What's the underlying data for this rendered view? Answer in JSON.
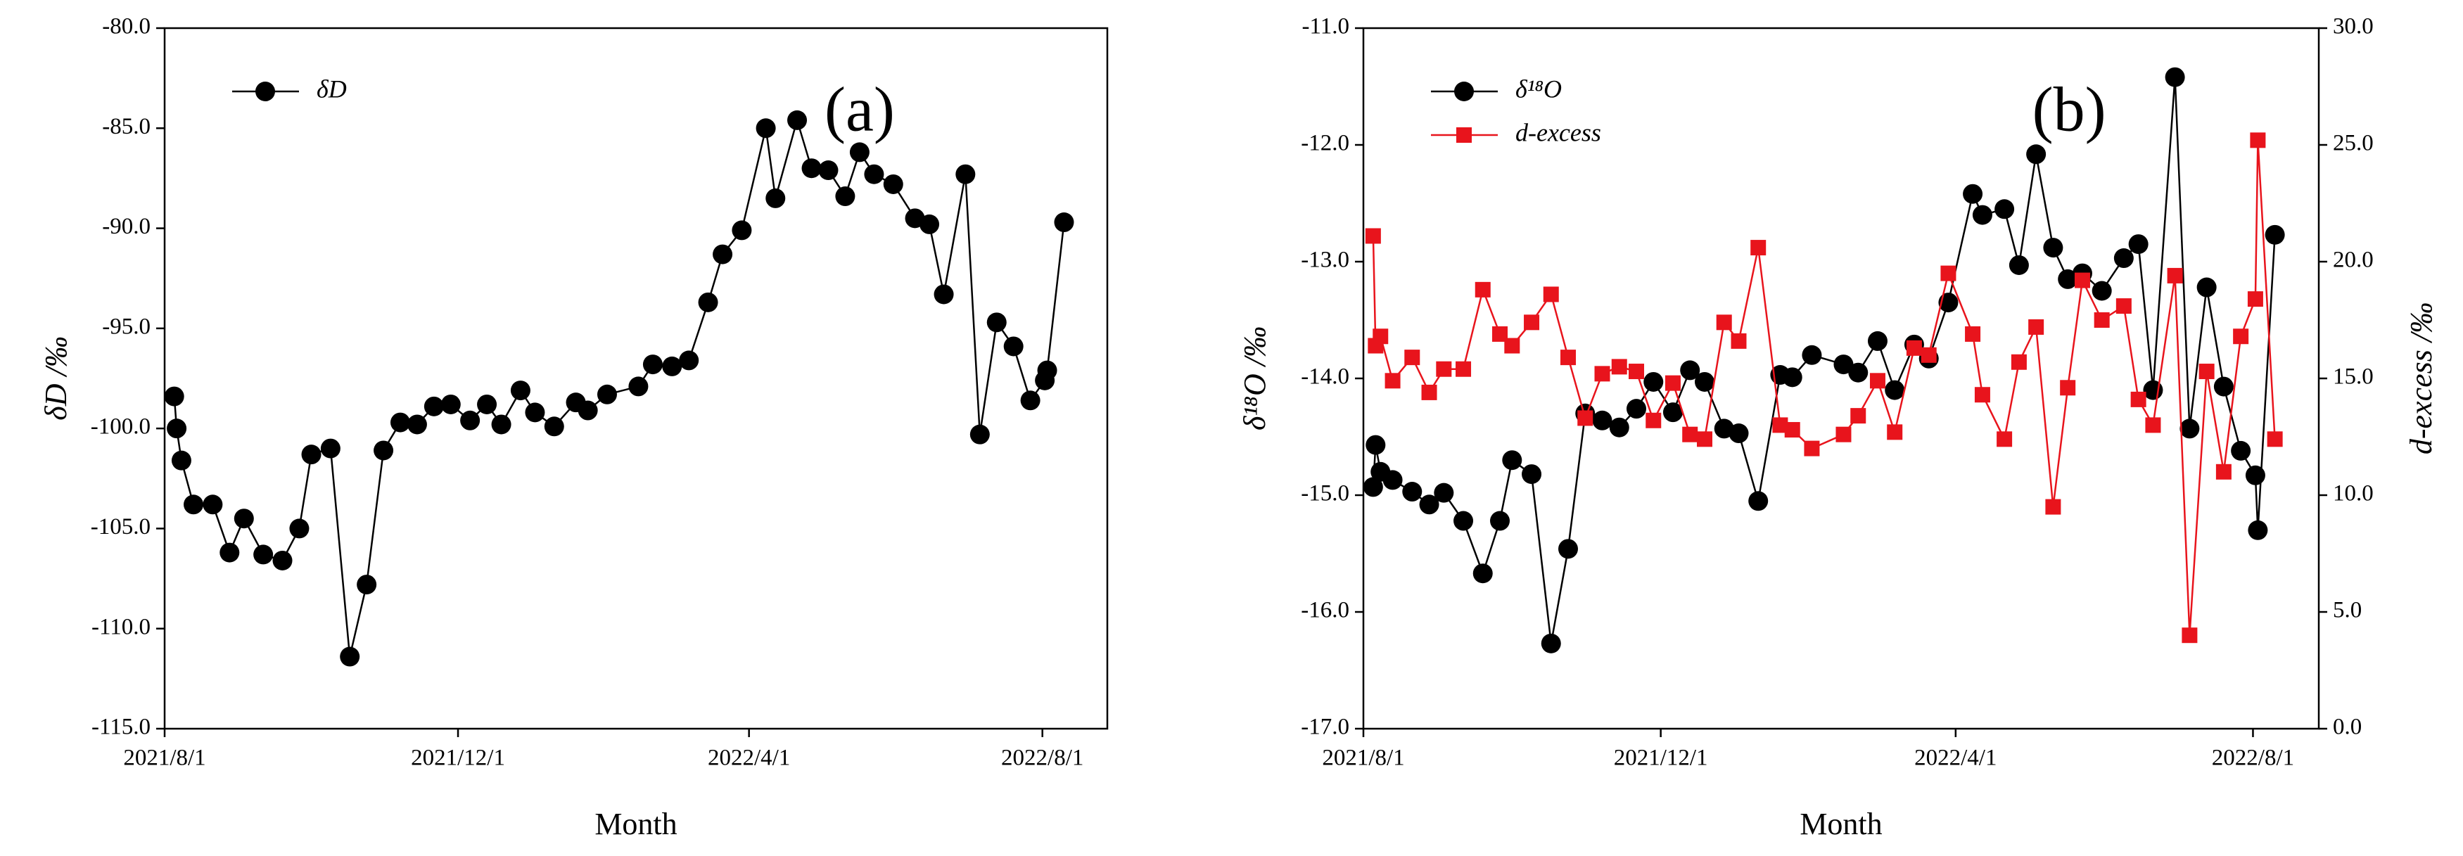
{
  "chart_data": [
    {
      "type": "line",
      "annotation": "(a)",
      "x_label": "Month",
      "y_label": "δD /‰",
      "legend": "upper left",
      "x": [
        "2021/8/5",
        "2021/8/6",
        "2021/8/8",
        "2021/8/13",
        "2021/8/21",
        "2021/8/28",
        "2021/9/3",
        "2021/9/11",
        "2021/9/19",
        "2021/9/26",
        "2021/10/1",
        "2021/10/9",
        "2021/10/17",
        "2021/10/24",
        "2021/10/31",
        "2021/11/7",
        "2021/11/14",
        "2021/11/21",
        "2021/11/28",
        "2021/12/6",
        "2021/12/13",
        "2021/12/19",
        "2021/12/27",
        "2022/1/2",
        "2022/1/10",
        "2022/1/19",
        "2022/1/24",
        "2022/2/1",
        "2022/2/14",
        "2022/2/20",
        "2022/2/28",
        "2022/3/7",
        "2022/3/15",
        "2022/3/21",
        "2022/3/29",
        "2022/4/8",
        "2022/4/12",
        "2022/4/21",
        "2022/4/27",
        "2022/5/4",
        "2022/5/11",
        "2022/5/17",
        "2022/5/23",
        "2022/5/31",
        "2022/6/9",
        "2022/6/15",
        "2022/6/21",
        "2022/6/30",
        "2022/7/6",
        "2022/7/13",
        "2022/7/20",
        "2022/7/27",
        "2022/8/2",
        "2022/8/3",
        "2022/8/10"
      ],
      "xlim": [
        "2021/8/1",
        "2022/8/28"
      ],
      "xticks": [
        "2021/8/1",
        "2021/12/1",
        "2022/4/1",
        "2022/8/1"
      ],
      "ylim": [
        -115,
        -80
      ],
      "yticks": [
        {
          "value": -115,
          "label": "-115.0"
        },
        {
          "value": -110,
          "label": "-110.0"
        },
        {
          "value": -105,
          "label": "-105.0"
        },
        {
          "value": -100,
          "label": "-100.0"
        },
        {
          "value": -95,
          "label": "-95.0"
        },
        {
          "value": -90,
          "label": "-90.0"
        },
        {
          "value": -85,
          "label": "-85.0"
        },
        {
          "value": -80,
          "label": "-80.0"
        }
      ],
      "series": [
        {
          "name": "δD",
          "color": "#000000",
          "marker": "circle",
          "values": [
            -98.4,
            -100.0,
            -101.6,
            -103.8,
            -103.8,
            -106.2,
            -104.5,
            -106.3,
            -106.6,
            -105.0,
            -101.3,
            -101.0,
            -111.4,
            -107.8,
            -101.1,
            -99.7,
            -99.8,
            -98.9,
            -98.8,
            -99.6,
            -98.8,
            -99.8,
            -98.1,
            -99.2,
            -99.9,
            -98.7,
            -99.1,
            -98.3,
            -97.9,
            -96.8,
            -96.9,
            -96.6,
            -93.7,
            -91.3,
            -90.1,
            -85.0,
            -88.5,
            -84.6,
            -87.0,
            -87.1,
            -88.4,
            -86.2,
            -87.3,
            -87.8,
            -89.5,
            -89.8,
            -93.3,
            -87.3,
            -100.3,
            -94.7,
            -95.9,
            -98.6,
            -97.6,
            -97.1,
            -89.7
          ]
        }
      ]
    },
    {
      "type": "line",
      "annotation": "(b)",
      "x_label": "Month",
      "y_label": "δ¹⁸O /‰",
      "y2_label": "d-excess /‰",
      "legend": "upper left",
      "x": [
        "2021/8/5",
        "2021/8/6",
        "2021/8/8",
        "2021/8/13",
        "2021/8/21",
        "2021/8/28",
        "2021/9/3",
        "2021/9/11",
        "2021/9/19",
        "2021/9/26",
        "2021/10/1",
        "2021/10/9",
        "2021/10/17",
        "2021/10/24",
        "2021/10/31",
        "2021/11/7",
        "2021/11/14",
        "2021/11/21",
        "2021/11/28",
        "2021/12/6",
        "2021/12/13",
        "2021/12/19",
        "2021/12/27",
        "2022/1/2",
        "2022/1/10",
        "2022/1/19",
        "2022/1/24",
        "2022/2/1",
        "2022/2/14",
        "2022/2/20",
        "2022/2/28",
        "2022/3/7",
        "2022/3/15",
        "2022/3/21",
        "2022/3/29",
        "2022/4/8",
        "2022/4/12",
        "2022/4/21",
        "2022/4/27",
        "2022/5/4",
        "2022/5/11",
        "2022/5/17",
        "2022/5/23",
        "2022/5/31",
        "2022/6/9",
        "2022/6/15",
        "2022/6/21",
        "2022/6/30",
        "2022/7/6",
        "2022/7/13",
        "2022/7/20",
        "2022/7/27",
        "2022/8/2",
        "2022/8/3",
        "2022/8/10"
      ],
      "xlim": [
        "2021/8/1",
        "2022/8/28"
      ],
      "xticks": [
        "2021/8/1",
        "2021/12/1",
        "2022/4/1",
        "2022/8/1"
      ],
      "ylim": [
        -17,
        -11
      ],
      "yticks": [
        {
          "value": -17,
          "label": "-17.0"
        },
        {
          "value": -16,
          "label": "-16.0"
        },
        {
          "value": -15,
          "label": "-15.0"
        },
        {
          "value": -14,
          "label": "-14.0"
        },
        {
          "value": -13,
          "label": "-13.0"
        },
        {
          "value": -12,
          "label": "-12.0"
        },
        {
          "value": -11,
          "label": "-11.0"
        }
      ],
      "y2lim": [
        0,
        30
      ],
      "y2ticks": [
        {
          "value": 0,
          "label": "0.0"
        },
        {
          "value": 5,
          "label": "5.0"
        },
        {
          "value": 10,
          "label": "10.0"
        },
        {
          "value": 15,
          "label": "15.0"
        },
        {
          "value": 20,
          "label": "20.0"
        },
        {
          "value": 25,
          "label": "25.0"
        },
        {
          "value": 30,
          "label": "30.0"
        }
      ],
      "series": [
        {
          "name": "δ¹⁸O",
          "color": "#000000",
          "marker": "circle",
          "values": [
            -14.93,
            -14.57,
            -14.8,
            -14.87,
            -14.97,
            -15.08,
            -14.98,
            -15.22,
            -15.67,
            -15.22,
            -14.7,
            -14.82,
            -16.27,
            -15.46,
            -14.3,
            -14.36,
            -14.42,
            -14.26,
            -14.03,
            -14.29,
            -13.93,
            -14.03,
            -14.43,
            -14.47,
            -15.05,
            -13.97,
            -13.99,
            -13.8,
            -13.88,
            -13.95,
            -13.68,
            -14.1,
            -13.71,
            -13.83,
            -13.35,
            -12.42,
            -12.6,
            -12.55,
            -13.03,
            -12.08,
            -12.88,
            -13.15,
            -13.1,
            -13.25,
            -12.97,
            -12.85,
            -14.1,
            -11.42,
            -14.43,
            -13.22,
            -14.07,
            -14.62,
            -14.83,
            -15.3,
            -12.77
          ]
        },
        {
          "name": "d-excess",
          "color": "#e8141c",
          "marker": "square",
          "axis": "y2",
          "values": [
            21.1,
            16.4,
            16.8,
            14.9,
            15.9,
            14.4,
            15.4,
            15.4,
            18.8,
            16.9,
            16.4,
            17.4,
            18.6,
            15.9,
            13.3,
            15.2,
            15.5,
            15.3,
            13.2,
            14.8,
            12.6,
            12.4,
            17.4,
            16.6,
            20.6,
            13.0,
            12.8,
            12.0,
            12.6,
            13.4,
            14.9,
            12.7,
            16.3,
            16.0,
            19.5,
            16.9,
            14.3,
            12.4,
            15.7,
            17.2,
            9.5,
            14.6,
            19.2,
            17.5,
            18.1,
            14.1,
            13.0,
            19.4,
            4.0,
            15.3,
            11.0,
            16.8,
            18.4,
            25.2,
            12.4
          ]
        }
      ]
    }
  ]
}
